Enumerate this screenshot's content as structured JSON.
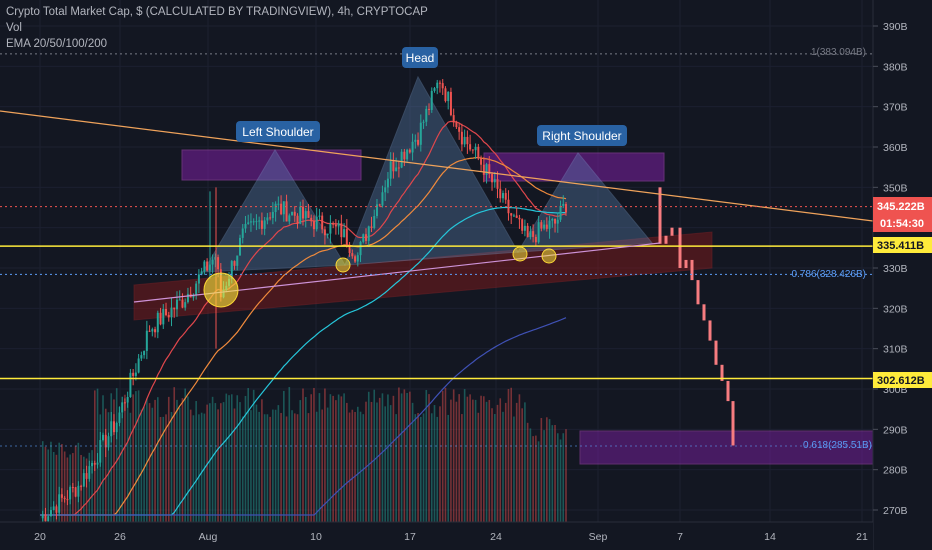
{
  "legend": {
    "line1": "Crypto Total Market Cap, $ (CALCULATED BY TRADINGVIEW), 4h, CRYPTOCAP",
    "line2": "Vol",
    "line3": "EMA 20/50/100/200"
  },
  "colors": {
    "background": "#131722",
    "up": "#26a69a",
    "down": "#ef5350",
    "projection": "#f77c80",
    "yellow_line": "#ffeb3b",
    "trendline": "#f0a35b",
    "ema20": "#e0474c",
    "ema50": "#f08a3c",
    "ema100": "#26c6da",
    "ema200": "#3f51b5",
    "zone_purple": "#7b1fa2",
    "zone_red": "#8b1a1a",
    "triangle": "#5f86b8",
    "label_bg": "#2962a3"
  },
  "annotations": {
    "head": "Head",
    "left_shoulder": "Left Shoulder",
    "right_shoulder": "Right Shoulder"
  },
  "price_badges": {
    "last": "345.222B",
    "countdown": "01:54:30",
    "level_upper": "335.411B",
    "level_lower": "302.612B"
  },
  "fib_labels": {
    "top": "1(383.094B)",
    "fib_786": "0.786(328.426B)",
    "fib_618": "0.618(285.51B)"
  },
  "chart_data": {
    "type": "candlestick",
    "title": "Crypto Total Market Cap, $ (CALCULATED BY TRADINGVIEW), 4h, CRYPTOCAP",
    "indicators": [
      "Vol",
      "EMA 20/50/100/200"
    ],
    "y_axis": {
      "unit": "B",
      "range": [
        268,
        395
      ],
      "ticks": [
        "270B",
        "280B",
        "290B",
        "300B",
        "310B",
        "320B",
        "330B",
        "340B",
        "350B",
        "360B",
        "370B",
        "380B",
        "390B"
      ]
    },
    "x_axis": {
      "ticks": [
        "20",
        "26",
        "Aug",
        "10",
        "17",
        "24",
        "Sep",
        "7",
        "14",
        "21"
      ]
    },
    "price_path": [
      [
        "20",
        268
      ],
      [
        "23",
        276
      ],
      [
        "26",
        292
      ],
      [
        "28",
        315
      ],
      [
        "30",
        322
      ],
      [
        "Aug 2",
        333
      ],
      [
        "Aug 3",
        323
      ],
      [
        "Aug 5",
        338
      ],
      [
        "Aug 7",
        345
      ],
      [
        "Aug 9",
        342
      ],
      [
        "Aug 11",
        339
      ],
      [
        "Aug 12",
        333
      ],
      [
        "Aug 14",
        355
      ],
      [
        "Aug 16",
        363
      ],
      [
        "Aug 17",
        377
      ],
      [
        "Aug 19",
        363
      ],
      [
        "Aug 21",
        355
      ],
      [
        "Aug 23",
        345
      ],
      [
        "Aug 25",
        337
      ],
      [
        "Aug 26",
        340
      ],
      [
        "Aug 27",
        341
      ],
      [
        "Aug 28",
        346
      ]
    ],
    "projection_path": [
      [
        "Sep 5",
        350
      ],
      [
        "Sep 5",
        332
      ],
      [
        "Sep 6",
        335
      ],
      [
        "Sep 8",
        325
      ],
      [
        "Sep 10",
        310
      ],
      [
        "Sep 11",
        300
      ],
      [
        "Sep 12",
        286
      ]
    ],
    "horizontal_levels": [
      {
        "label": "335.411B",
        "value": 335.411
      },
      {
        "label": "302.612B",
        "value": 302.612
      }
    ],
    "fibonacci": [
      {
        "label": "1(383.094B)",
        "value": 383.094
      },
      {
        "label": "0.786(328.426B)",
        "value": 328.426
      },
      {
        "label": "0.618(285.51B)",
        "value": 285.51
      }
    ],
    "last_price": {
      "label": "345.222B",
      "value": 345.222,
      "countdown": "01:54:30"
    },
    "pattern": [
      "Left Shoulder",
      "Head",
      "Right Shoulder"
    ],
    "grid": true
  }
}
